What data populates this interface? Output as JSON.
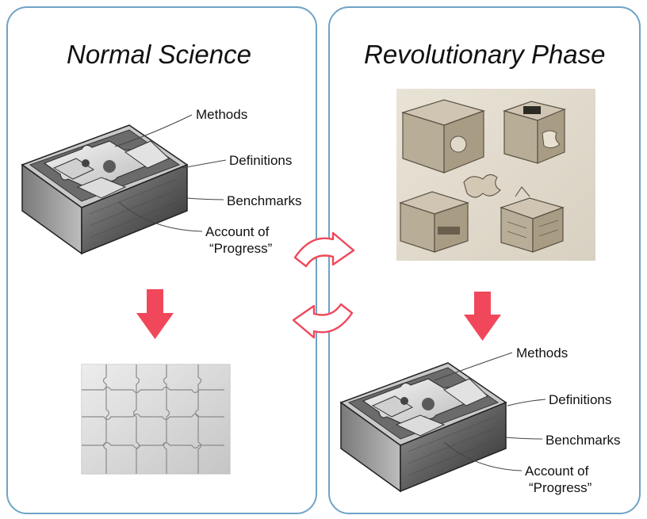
{
  "left_panel": {
    "title": "Normal Science",
    "labels": {
      "methods": "Methods",
      "definitions": "Definitions",
      "benchmarks": "Benchmarks",
      "progress_line1": "Account of",
      "progress_line2": "“Progress”"
    }
  },
  "right_panel": {
    "title": "Revolutionary Phase",
    "labels": {
      "methods": "Methods",
      "definitions": "Definitions",
      "benchmarks": "Benchmarks",
      "progress_line1": "Account of",
      "progress_line2": "“Progress”"
    }
  },
  "colors": {
    "panel_border": "#6fa3c6",
    "arrow_red": "#f0485a",
    "cycle_arrow_outline": "#f0485a"
  },
  "icons": [
    "puzzle-box-icon",
    "down-arrow-icon",
    "cycle-arrow-icon",
    "puzzle-grid-icon",
    "box-sketch-icon"
  ]
}
